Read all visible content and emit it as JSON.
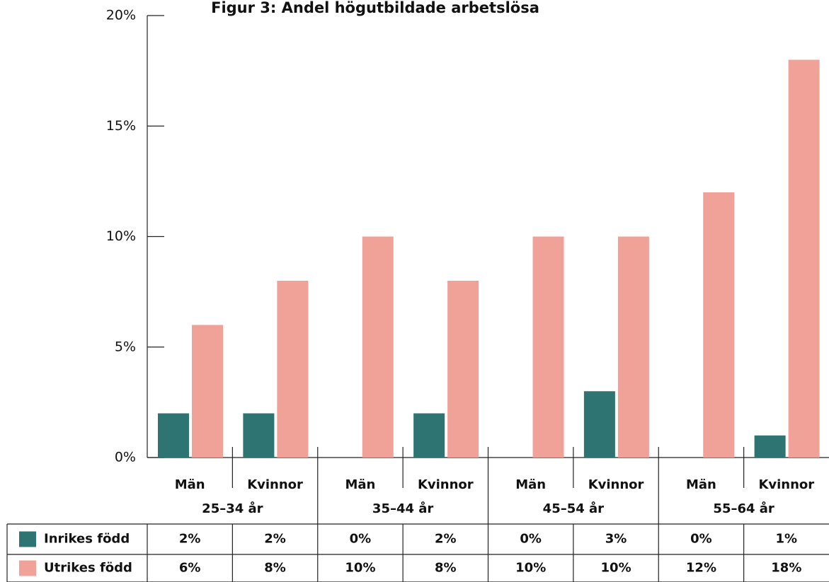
{
  "chart_data": {
    "type": "bar",
    "title": "Figur 3: Andel högutbildade arbetslösa",
    "categories": [
      "Män",
      "Kvinnor",
      "Män",
      "Kvinnor",
      "Män",
      "Kvinnor",
      "Män",
      "Kvinnor"
    ],
    "groups": [
      "25–34 år",
      "35–44 år",
      "45–54 år",
      "55–64 år"
    ],
    "series": [
      {
        "name": "Inrikes född",
        "color": "#2e7472",
        "values": [
          2,
          2,
          0,
          2,
          0,
          3,
          0,
          1
        ],
        "value_labels": [
          "2%",
          "2%",
          "0%",
          "2%",
          "0%",
          "3%",
          "0%",
          "1%"
        ]
      },
      {
        "name": "Utrikes född",
        "color": "#f0a299",
        "values": [
          6,
          8,
          10,
          8,
          10,
          10,
          12,
          18
        ],
        "value_labels": [
          "6%",
          "8%",
          "10%",
          "8%",
          "10%",
          "10%",
          "12%",
          "18%"
        ]
      }
    ],
    "ylim": [
      0,
      20
    ],
    "yticks": [
      {
        "value": 0,
        "label": "0%"
      },
      {
        "value": 5,
        "label": "5%"
      },
      {
        "value": 10,
        "label": "10%"
      },
      {
        "value": 15,
        "label": "15%"
      },
      {
        "value": 20,
        "label": "20%"
      }
    ]
  }
}
